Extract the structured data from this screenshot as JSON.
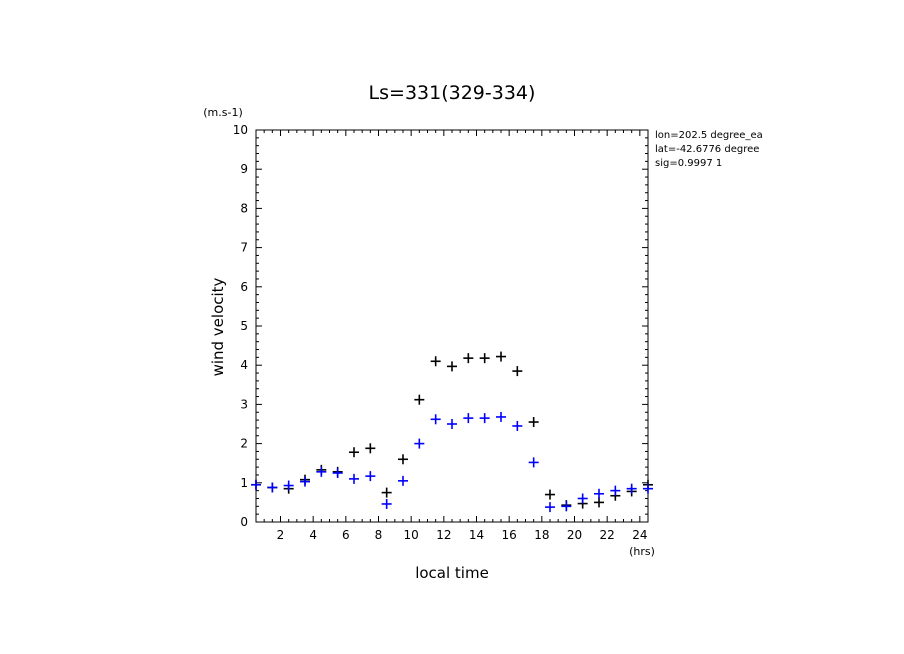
{
  "chart_data": {
    "type": "scatter",
    "title": "Ls=331(329-334)",
    "xlabel": "local time",
    "ylabel": "wind velocity",
    "x_unit": "(hrs)",
    "y_unit": "(m.s-1)",
    "xlim": [
      0.5,
      24.5
    ],
    "ylim": [
      0,
      10
    ],
    "x_ticks": [
      2,
      4,
      6,
      8,
      10,
      12,
      14,
      16,
      18,
      20,
      22,
      24
    ],
    "y_ticks": [
      0,
      1,
      2,
      3,
      4,
      5,
      6,
      7,
      8,
      9,
      10
    ],
    "info_lines": [
      "lon=202.5 degree_ea",
      "lat=-42.6776 degree",
      "sig=0.9997 1"
    ],
    "series": [
      {
        "color": "#000000",
        "marker": "+",
        "x": [
          0.5,
          1.5,
          2.5,
          3.5,
          4.5,
          5.5,
          6.5,
          7.5,
          8.5,
          9.5,
          10.5,
          11.5,
          12.5,
          13.5,
          14.5,
          15.5,
          16.5,
          17.5,
          18.5,
          19.5,
          20.5,
          21.5,
          22.5,
          23.5,
          24.5
        ],
        "y": [
          0.95,
          0.88,
          0.85,
          1.08,
          1.33,
          1.28,
          1.78,
          1.88,
          0.75,
          1.6,
          3.12,
          4.1,
          3.97,
          4.18,
          4.18,
          4.22,
          3.85,
          2.55,
          0.7,
          0.43,
          0.47,
          0.5,
          0.67,
          0.78,
          0.95
        ]
      },
      {
        "color": "#0000ff",
        "marker": "+",
        "x": [
          0.5,
          1.5,
          2.5,
          3.5,
          4.5,
          5.5,
          6.5,
          7.5,
          8.5,
          9.5,
          10.5,
          11.5,
          12.5,
          13.5,
          14.5,
          15.5,
          16.5,
          17.5,
          18.5,
          19.5,
          20.5,
          21.5,
          22.5,
          23.5,
          24.5
        ],
        "y": [
          0.95,
          0.88,
          0.93,
          1.03,
          1.28,
          1.25,
          1.1,
          1.17,
          0.46,
          1.05,
          2.0,
          2.62,
          2.5,
          2.65,
          2.65,
          2.68,
          2.45,
          1.52,
          0.38,
          0.4,
          0.6,
          0.72,
          0.8,
          0.85,
          0.85
        ]
      }
    ]
  }
}
